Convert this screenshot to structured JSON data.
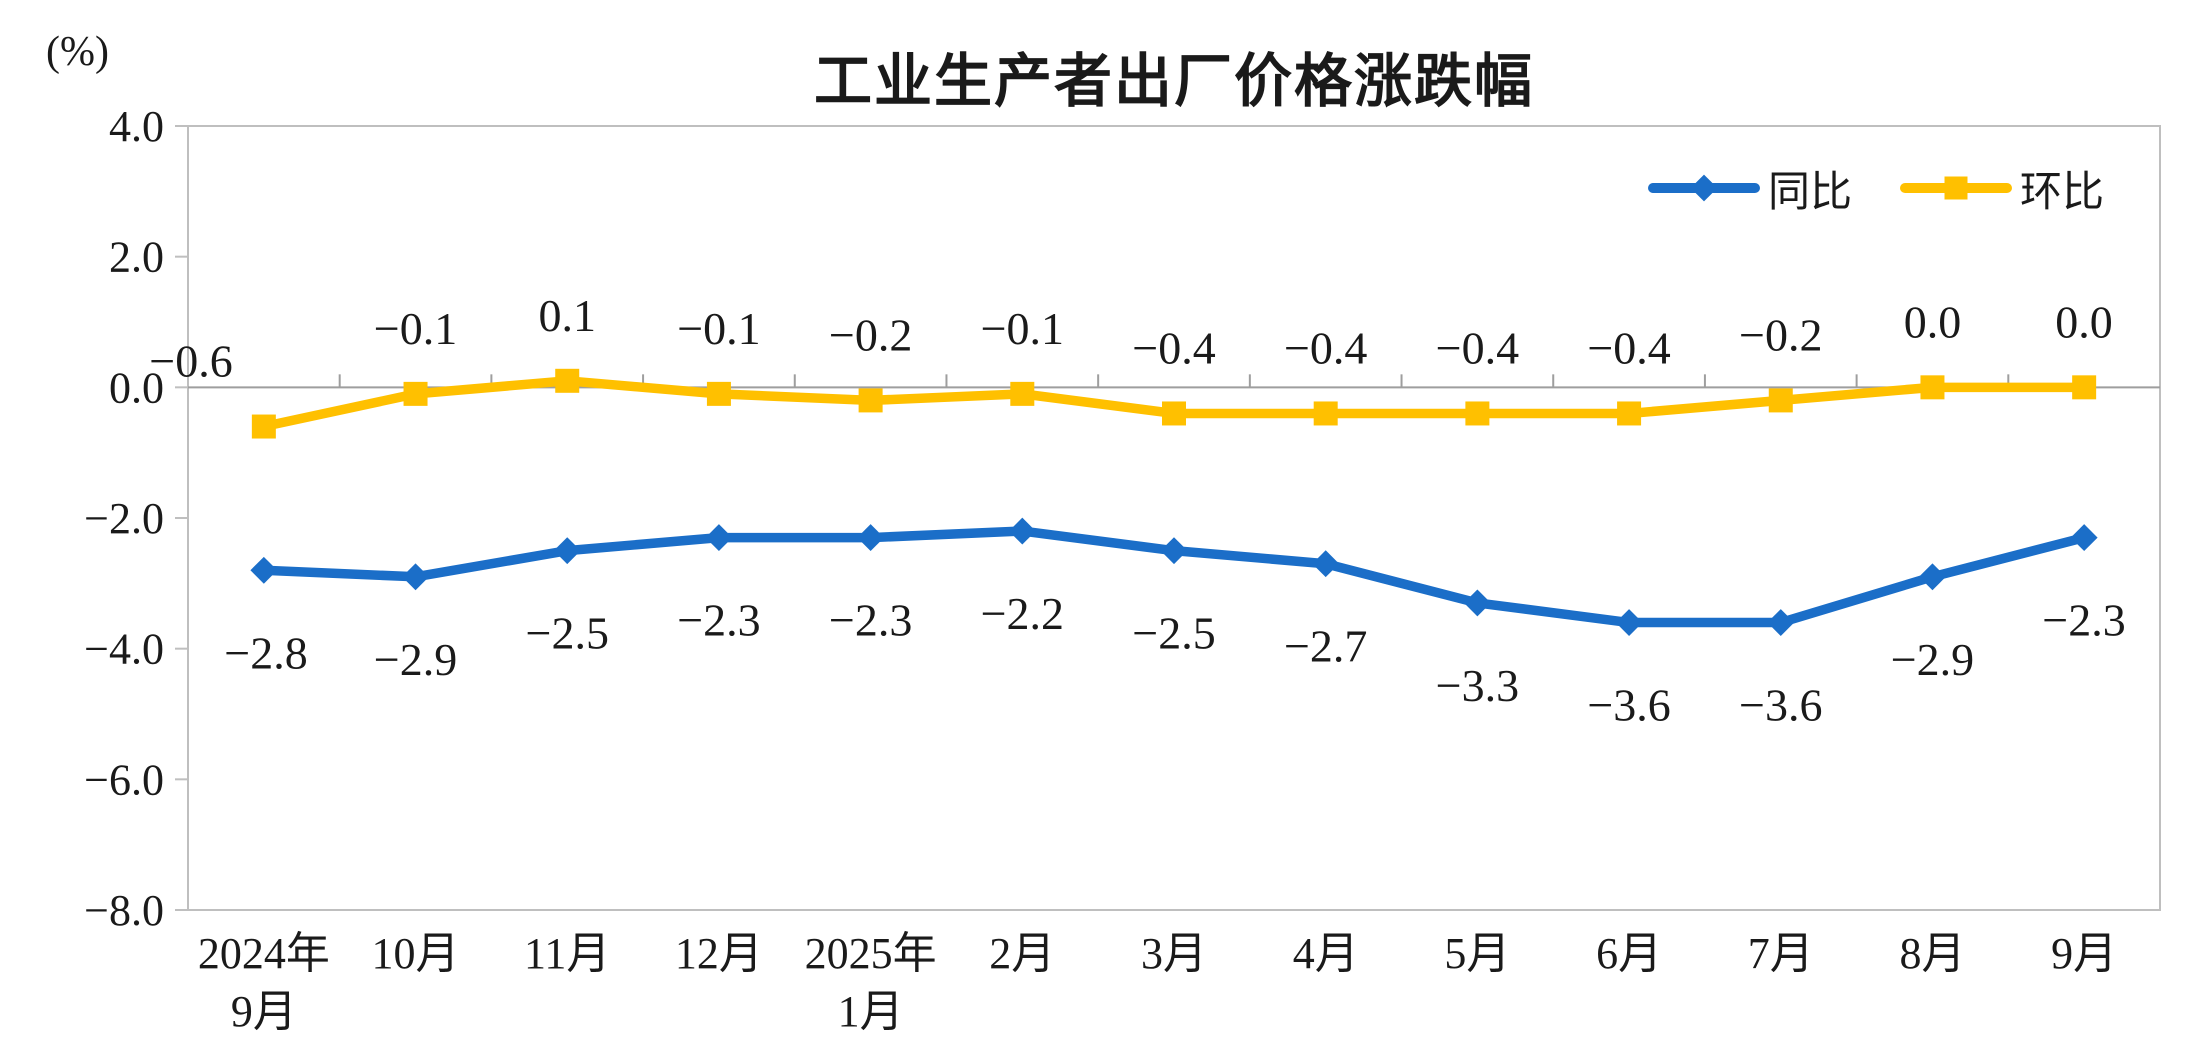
{
  "chart_data": {
    "type": "line",
    "title": "工业生产者出厂价格涨跌幅",
    "unit_label": "(%)",
    "categories": [
      "2024年9月",
      "10月",
      "11月",
      "12月",
      "2025年1月",
      "2月",
      "3月",
      "4月",
      "5月",
      "6月",
      "7月",
      "8月",
      "9月"
    ],
    "category_tick_lines": [
      [
        "2024年",
        "9月"
      ],
      [
        "10月"
      ],
      [
        "11月"
      ],
      [
        "12月"
      ],
      [
        "2025年",
        "1月"
      ],
      [
        "2月"
      ],
      [
        "3月"
      ],
      [
        "4月"
      ],
      [
        "5月"
      ],
      [
        "6月"
      ],
      [
        "7月"
      ],
      [
        "8月"
      ],
      [
        "9月"
      ]
    ],
    "series": [
      {
        "name": "同比",
        "marker": "diamond",
        "color": "#1B6EC8",
        "label_position": "below",
        "values": [
          -2.8,
          -2.9,
          -2.5,
          -2.3,
          -2.3,
          -2.2,
          -2.5,
          -2.7,
          -3.3,
          -3.6,
          -3.6,
          -2.9,
          -2.3
        ]
      },
      {
        "name": "环比",
        "marker": "square",
        "color": "#FFC000",
        "label_position": "above",
        "values": [
          -0.6,
          -0.1,
          0.1,
          -0.1,
          -0.2,
          -0.1,
          -0.4,
          -0.4,
          -0.4,
          -0.4,
          -0.2,
          0.0,
          0.0
        ]
      }
    ],
    "y_axis": {
      "min": -8.0,
      "max": 4.0,
      "step": 2.0,
      "tick_labels": [
        "4.0",
        "2.0",
        "0.0",
        "-2.0",
        "-4.0",
        "-6.0",
        "-8.0"
      ]
    },
    "legend_position": "top-right",
    "grid": false,
    "axis_color": "#BFBFBF",
    "zero_line_color": "#9E9E9E",
    "text_color": "#1A1A1A"
  }
}
